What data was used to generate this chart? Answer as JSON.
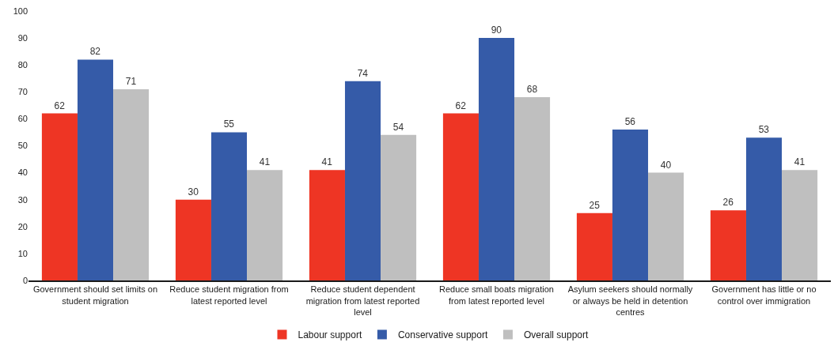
{
  "chart_data": {
    "type": "bar",
    "categories": [
      "Government should set limits on student migration",
      "Reduce student migration from latest reported level",
      "Reduce student dependent migration from latest reported level",
      "Reduce small boats migration from latest reported level",
      "Asylum seekers should normally or always be held in detention centres",
      "Government has little or no control over immigration"
    ],
    "series": [
      {
        "name": "Labour support",
        "color": "#ee3524",
        "values": [
          62,
          30,
          41,
          62,
          25,
          26
        ]
      },
      {
        "name": "Conservative support",
        "color": "#355ba8",
        "values": [
          82,
          55,
          74,
          90,
          56,
          53
        ]
      },
      {
        "name": "Overall support",
        "color": "#bfbfbf",
        "values": [
          71,
          41,
          54,
          68,
          40,
          41
        ]
      }
    ],
    "ylim": [
      0,
      100
    ],
    "yticks": [
      0,
      10,
      20,
      30,
      40,
      50,
      60,
      70,
      80,
      90,
      100
    ],
    "grid": false,
    "legend": "bottom",
    "data_labels": true
  }
}
